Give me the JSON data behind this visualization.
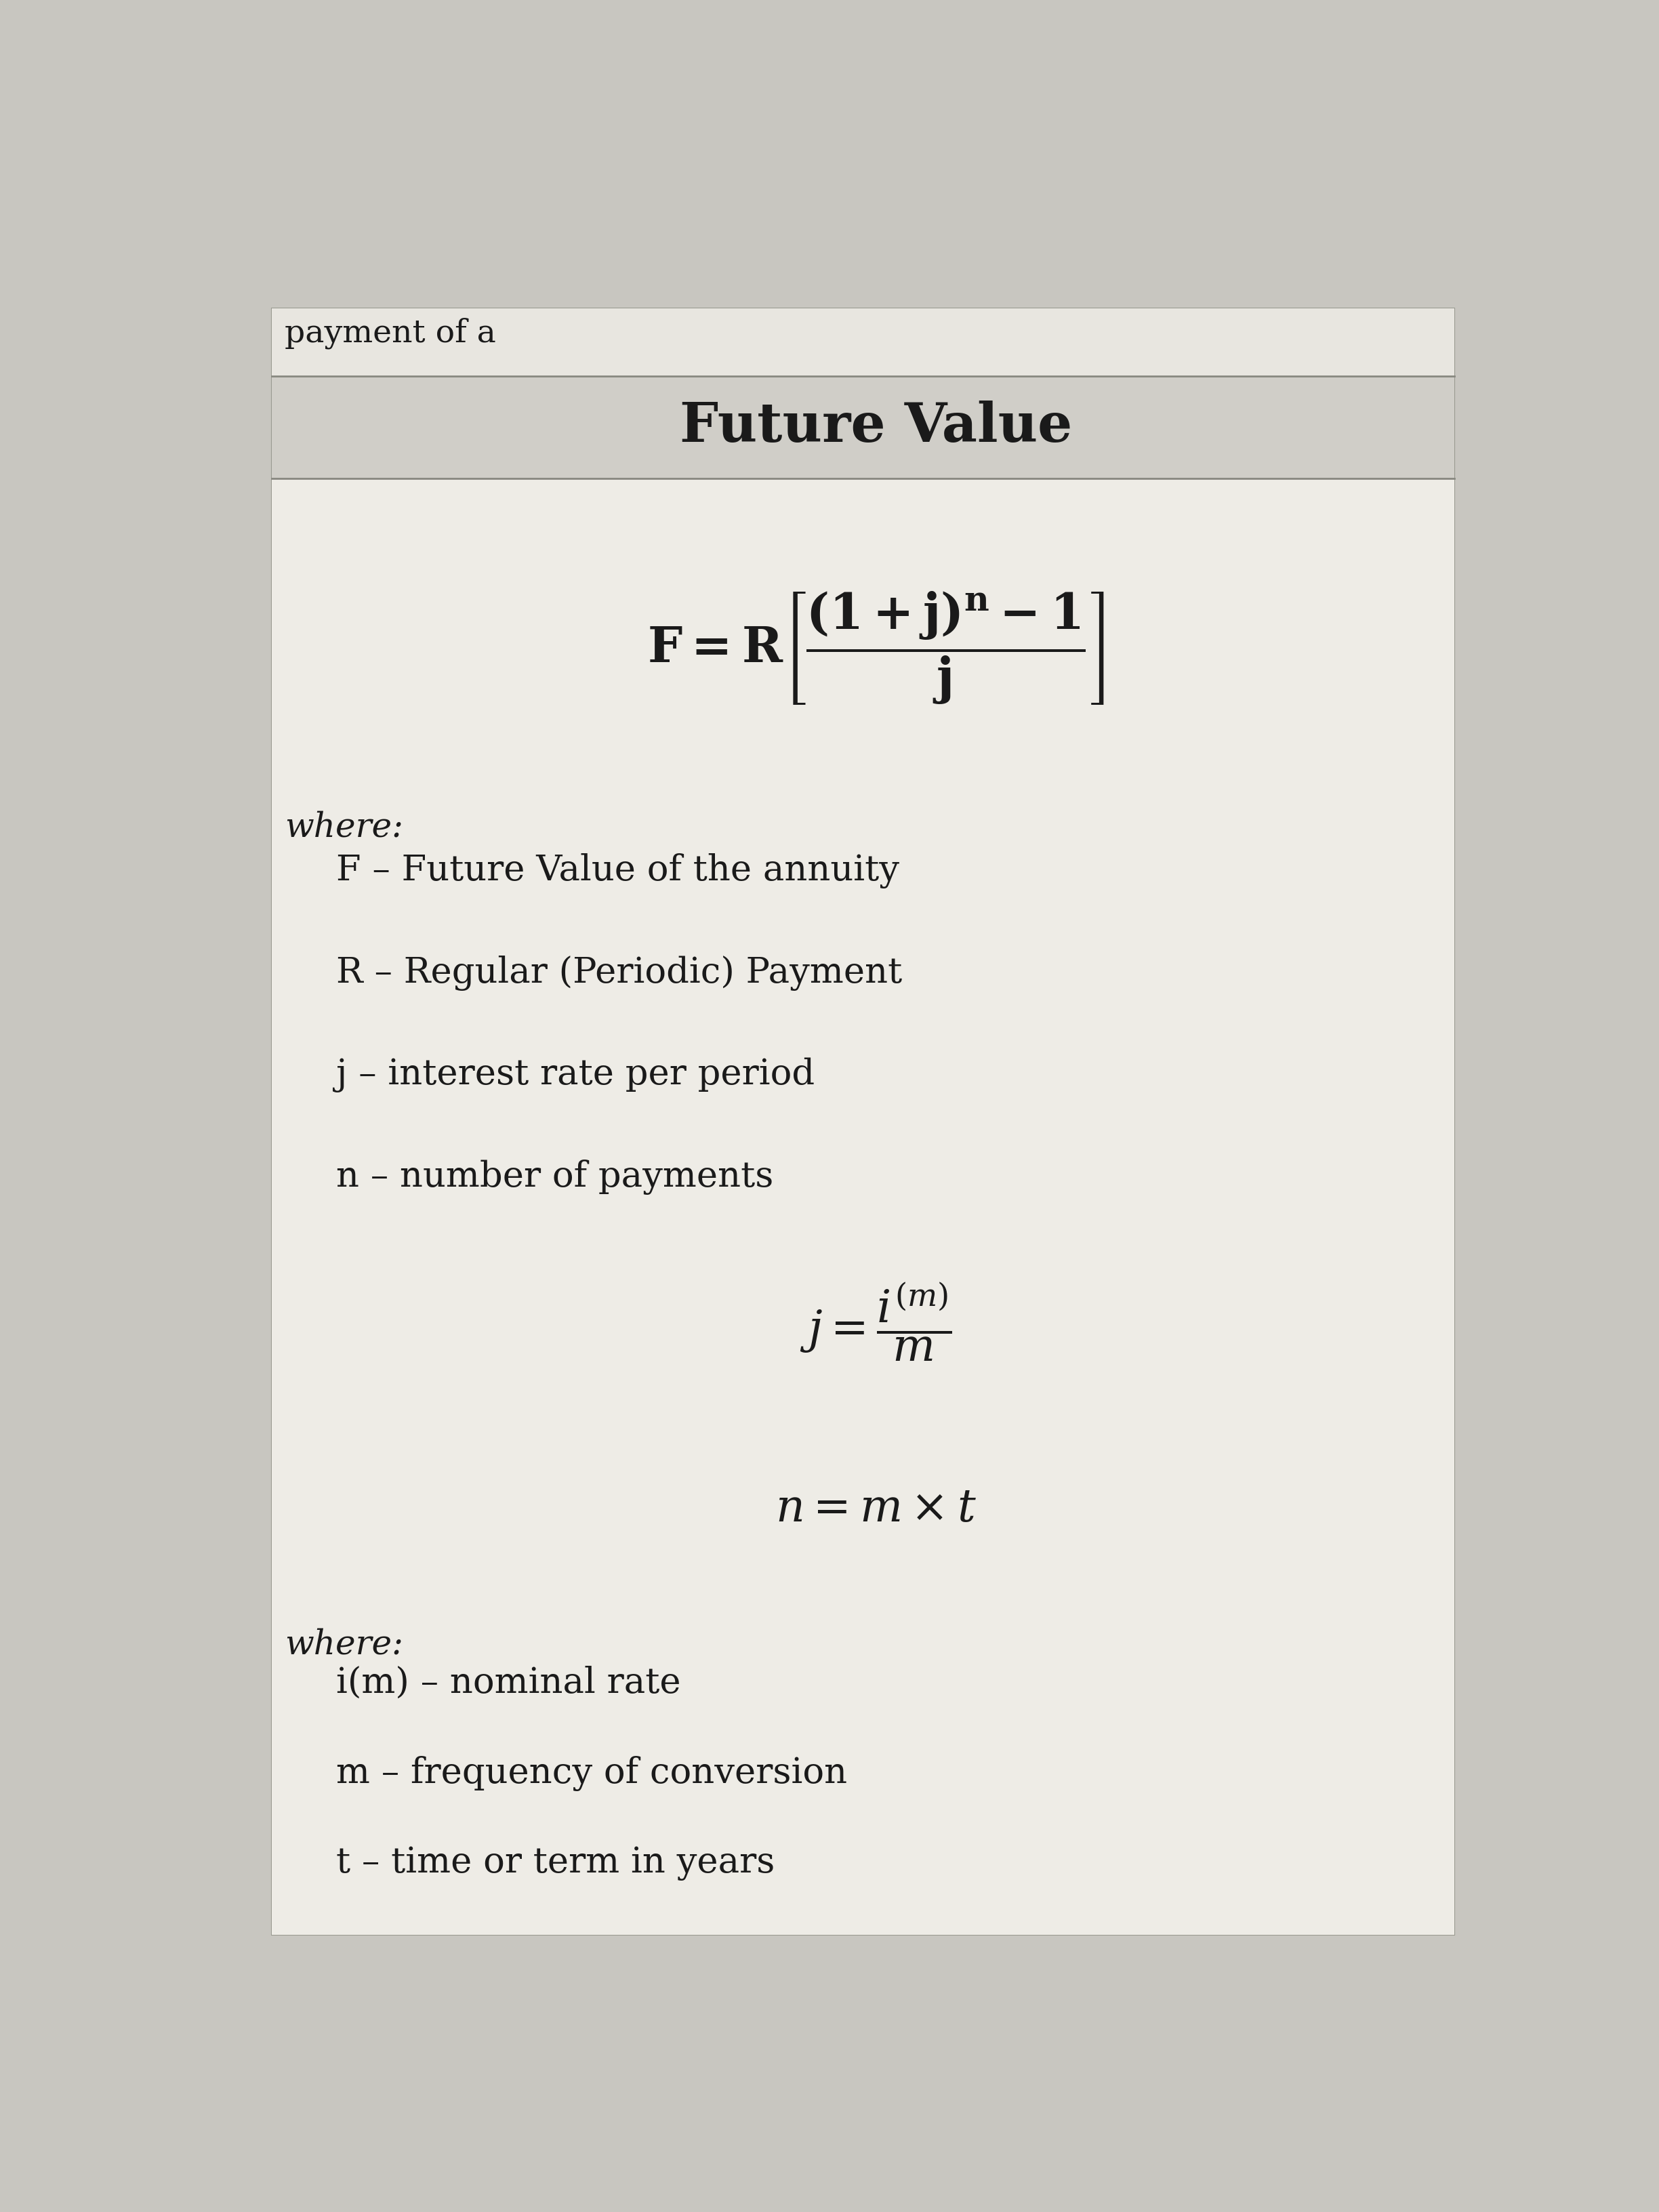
{
  "title": "Future Value",
  "page_header": "payment of a",
  "bg_color": "#c8c6c0",
  "card_bg": "#e8e6e0",
  "header_bg": "#d0cec8",
  "inner_bg": "#eeece6",
  "text_color": "#1a1a1a",
  "title_fontsize": 58,
  "header_fontsize": 34,
  "formula_main_fontsize": 52,
  "formula_sub_fontsize": 48,
  "body_fontsize": 38,
  "where_fontsize": 36,
  "where1_label": "where:",
  "where1_items": [
    "F – Future Value of the annuity",
    "R – Regular (Periodic) Payment",
    "j – interest rate per period",
    "n – number of payments"
  ],
  "where2_label": "where:",
  "where2_items": [
    "i(m) – nominal rate",
    "m – frequency of conversion",
    "t – time or term in years"
  ]
}
